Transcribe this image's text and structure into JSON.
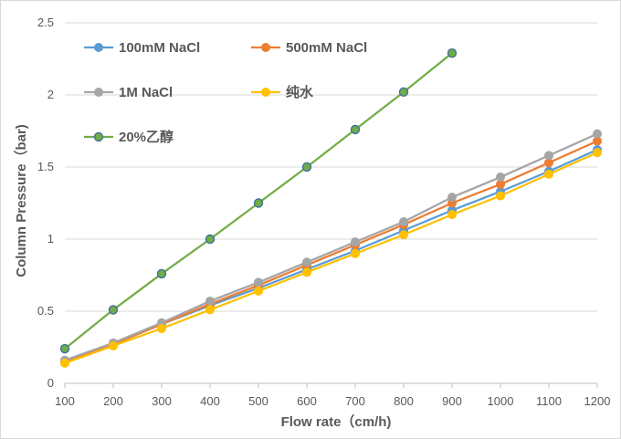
{
  "chart_data": {
    "type": "line",
    "title": "",
    "xlabel": "Flow rate（cm/h)",
    "ylabel": "Column Pressure（bar)",
    "x": [
      100,
      200,
      300,
      400,
      500,
      600,
      700,
      800,
      900,
      1000,
      1100,
      1200
    ],
    "xlim": [
      100,
      1200
    ],
    "ylim": [
      0,
      2.5
    ],
    "x_ticks": [
      "100",
      "200",
      "300",
      "400",
      "500",
      "600",
      "700",
      "800",
      "900",
      "1000",
      "1100",
      "1200"
    ],
    "y_ticks": [
      "0",
      "0.5",
      "1",
      "1.5",
      "2",
      "2.5"
    ],
    "y_tick_values": [
      0,
      0.5,
      1,
      1.5,
      2,
      2.5
    ],
    "grid": true,
    "legend_position": "top-left",
    "series": [
      {
        "name": "100mM NaCl",
        "color": "#5b9bd5",
        "values": [
          0.15,
          0.27,
          0.41,
          0.54,
          0.66,
          0.79,
          0.92,
          1.06,
          1.2,
          1.33,
          1.47,
          1.62
        ]
      },
      {
        "name": "500mM NaCl",
        "color": "#ed7d31",
        "values": [
          0.15,
          0.27,
          0.41,
          0.55,
          0.68,
          0.82,
          0.96,
          1.1,
          1.25,
          1.38,
          1.53,
          1.68
        ]
      },
      {
        "name": "1M NaCl",
        "color": "#a5a5a5",
        "values": [
          0.16,
          0.28,
          0.42,
          0.57,
          0.7,
          0.84,
          0.98,
          1.12,
          1.29,
          1.43,
          1.58,
          1.73
        ]
      },
      {
        "name": "纯水",
        "color": "#ffc000",
        "values": [
          0.14,
          0.26,
          0.38,
          0.51,
          0.64,
          0.77,
          0.9,
          1.03,
          1.17,
          1.3,
          1.45,
          1.6
        ]
      },
      {
        "name": "20%乙醇",
        "color": "#70ad47",
        "values": [
          0.24,
          0.51,
          0.76,
          1.0,
          1.25,
          1.5,
          1.76,
          2.02,
          2.29,
          null,
          null,
          null
        ]
      }
    ]
  }
}
